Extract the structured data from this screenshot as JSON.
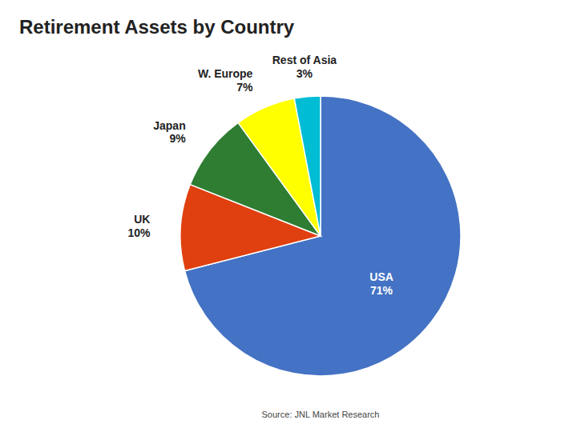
{
  "chart_data": {
    "type": "pie",
    "title": "Retirement Assets by Country",
    "categories": [
      "USA",
      "UK",
      "Japan",
      "W. Europe",
      "Rest of Asia"
    ],
    "values": [
      71,
      10,
      9,
      7,
      3
    ],
    "value_labels": [
      "71%",
      "10%",
      "9%",
      "7%",
      "3%"
    ],
    "colors": [
      "#4472C4",
      "#E04010",
      "#2E7D32",
      "#FFFF00",
      "#00BCD4"
    ],
    "data_labels": true,
    "annotations": [
      "Source:  JNL Market Research"
    ]
  }
}
